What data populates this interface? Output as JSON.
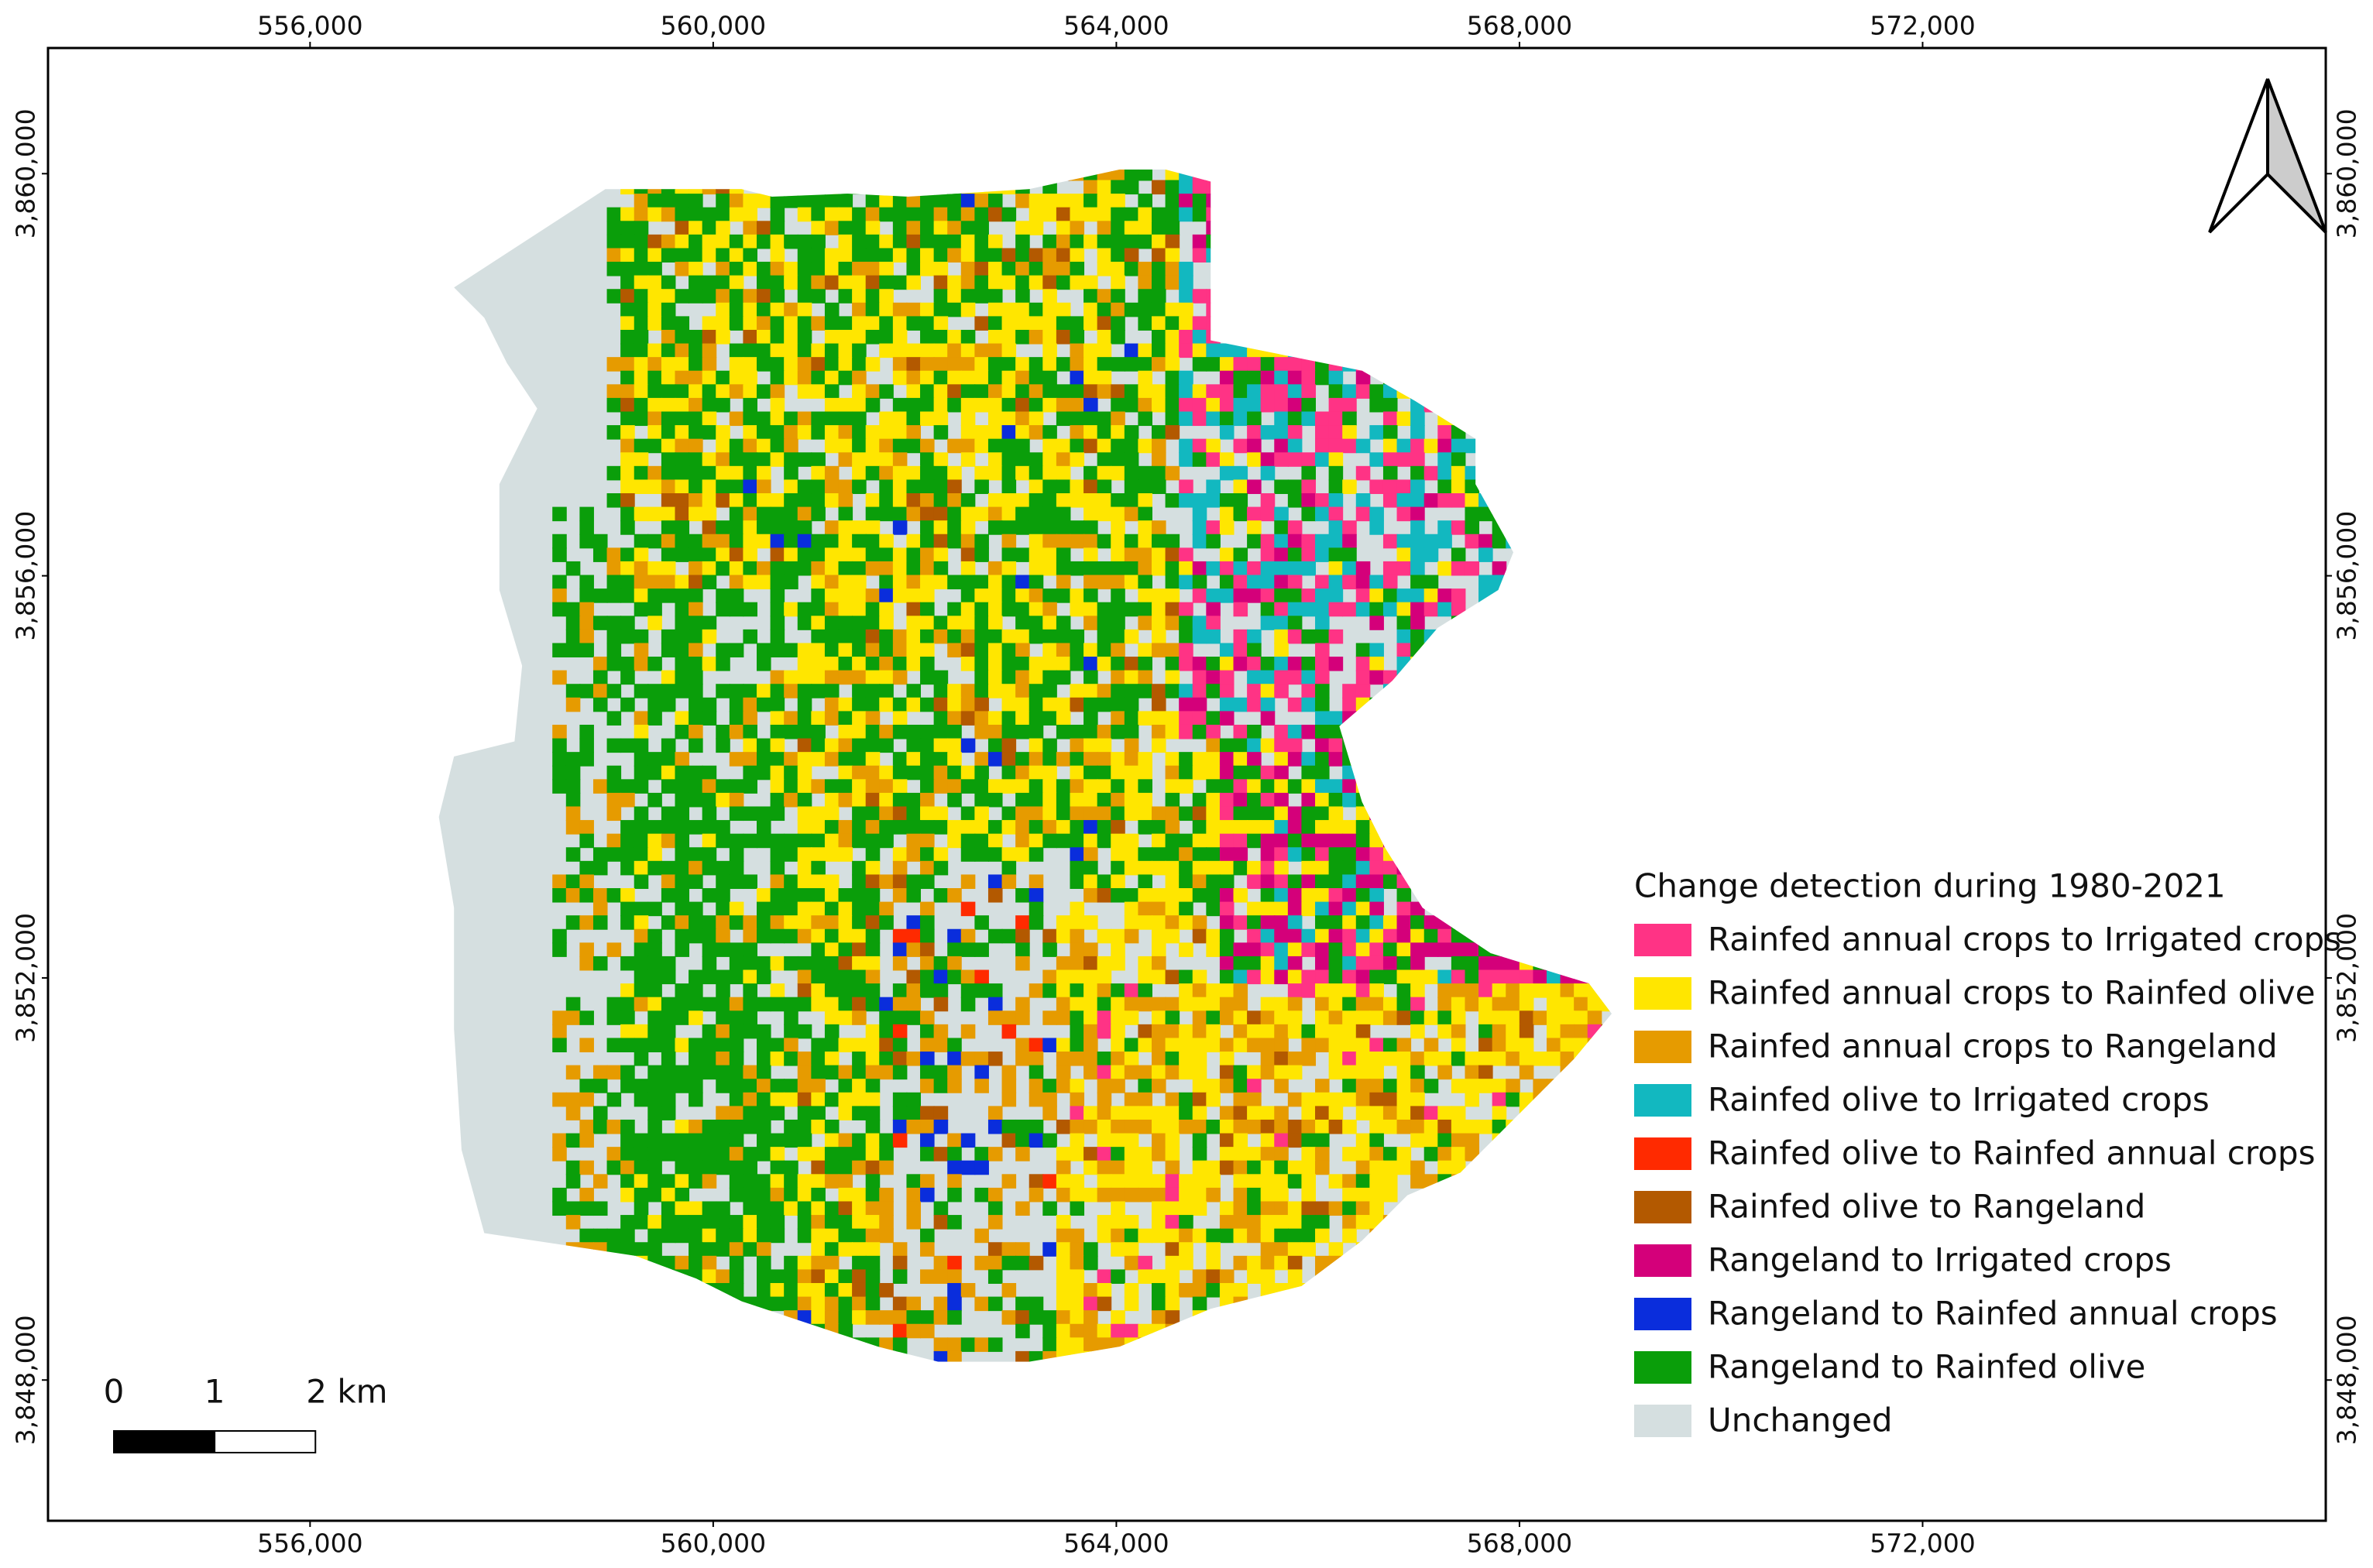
{
  "map": {
    "xlim": [
      553400,
      576000
    ],
    "ylim": [
      3846600,
      3861250
    ],
    "xticks": [
      {
        "value": 556000,
        "label": "556,000"
      },
      {
        "value": 560000,
        "label": "560,000"
      },
      {
        "value": 564000,
        "label": "564,000"
      },
      {
        "value": 568000,
        "label": "568,000"
      },
      {
        "value": 572000,
        "label": "572,000"
      }
    ],
    "yticks": [
      {
        "value": 3848000,
        "label": "3,848,000"
      },
      {
        "value": 3852000,
        "label": "3,852,000"
      },
      {
        "value": 3856000,
        "label": "3,856,000"
      },
      {
        "value": 3860000,
        "label": "3,860,000"
      }
    ],
    "legend": {
      "title": "Change detection during 1980-2021",
      "items": [
        {
          "label": "Rainfed annual crops to Irrigated crops",
          "color": "#ff3385"
        },
        {
          "label": "Rainfed annual crops to Rainfed olive",
          "color": "#ffe600"
        },
        {
          "label": "Rainfed annual crops to Rangeland",
          "color": "#e69b00"
        },
        {
          "label": "Rainfed olive to Irrigated crops",
          "color": "#12b8c0"
        },
        {
          "label": "Rainfed olive to Rainfed annual crops",
          "color": "#ff2a00"
        },
        {
          "label": "Rainfed olive to Rangeland",
          "color": "#b35900"
        },
        {
          "label": "Rangeland to Irrigated crops",
          "color": "#d4007a"
        },
        {
          "label": "Rangeland to Rainfed annual crops",
          "color": "#0a2ddc"
        },
        {
          "label": "Rangeland to Rainfed olive",
          "color": "#0a9e0a"
        },
        {
          "label": "Unchanged",
          "color": "#d5dfe0"
        }
      ]
    },
    "scale_bar": {
      "ticks": [
        0,
        1,
        {
          "value": 2,
          "label": "2 km"
        }
      ]
    }
  }
}
